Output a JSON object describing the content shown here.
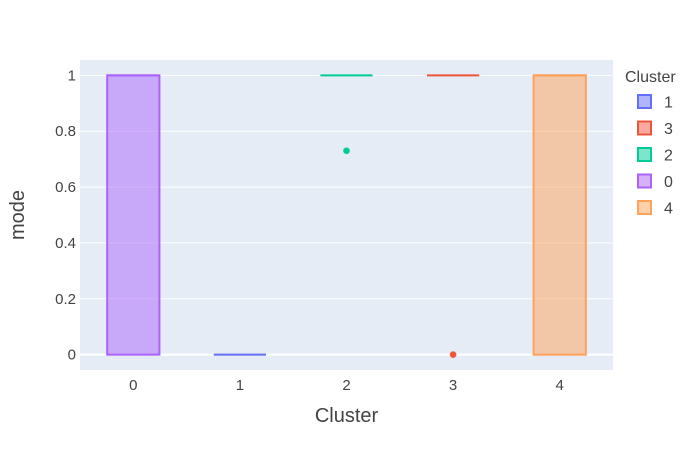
{
  "chart_data": {
    "type": "box",
    "xlabel": "Cluster",
    "ylabel": "mode",
    "categories": [
      "0",
      "1",
      "2",
      "3",
      "4"
    ],
    "y_ticks": [
      "0",
      "0.2",
      "0.4",
      "0.6",
      "0.8",
      "1"
    ],
    "ylim": [
      -0.055,
      1.055
    ],
    "grid": true,
    "legend": {
      "title": "Cluster",
      "placement": "right"
    },
    "series": [
      {
        "name": "1",
        "category": "1",
        "q1": 0,
        "median": 0,
        "q3": 0,
        "whisker_low": 0,
        "whisker_high": 0,
        "outliers": [],
        "color": "#636efa"
      },
      {
        "name": "3",
        "category": "3",
        "q1": 1,
        "median": 1,
        "q3": 1,
        "whisker_low": 1,
        "whisker_high": 1,
        "outliers": [
          0
        ],
        "color": "#EF553B"
      },
      {
        "name": "2",
        "category": "2",
        "q1": 1,
        "median": 1,
        "q3": 1,
        "whisker_low": 1,
        "whisker_high": 1,
        "outliers": [
          0.73
        ],
        "color": "#00cc96"
      },
      {
        "name": "0",
        "category": "0",
        "q1": 0,
        "median": 1,
        "q3": 1,
        "whisker_low": 0,
        "whisker_high": 1,
        "outliers": [],
        "color": "#ab63fa"
      },
      {
        "name": "4",
        "category": "4",
        "q1": 0,
        "median": 1,
        "q3": 1,
        "whisker_low": 0,
        "whisker_high": 1,
        "outliers": [],
        "color": "#FFA15A"
      }
    ]
  }
}
